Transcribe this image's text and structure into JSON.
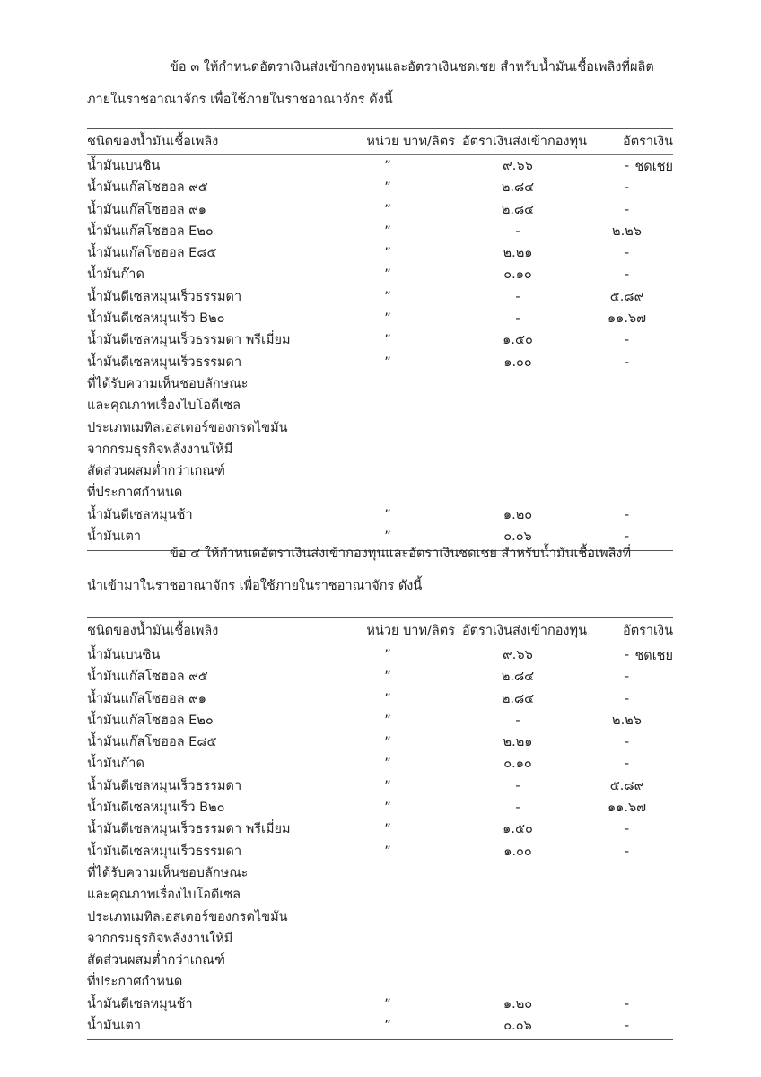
{
  "sections": [
    {
      "paragraph_line1": "ข้อ ๓ ให้กำหนดอัตราเงินส่งเข้ากองทุนและอัตราเงินชดเชย สำหรับน้ำมันเชื้อเพลิงที่ผลิต",
      "paragraph_line2": "ภายในราชอาณาจักร เพื่อใช้ภายในราชอาณาจักร ดังนี้"
    },
    {
      "paragraph_line1": "ข้อ ๔ ให้กำหนดอัตราเงินส่งเข้ากองทุนและอัตราเงินชดเชย สำหรับน้ำมันเชื้อเพลิงที่",
      "paragraph_line2": "นำเข้ามาในราชอาณาจักร เพื่อใช้ภายในราชอาณาจักร ดังนี้"
    }
  ],
  "table": {
    "headers": [
      "ชนิดของน้ำมันเชื้อเพลิง",
      "หน่วย บาท/ลิตร",
      "อัตราเงินส่งเข้ากองทุน",
      "อัตราเงินชดเชย"
    ],
    "rows": [
      {
        "name": "น้ำมันเบนซิน",
        "unit": "”",
        "fund": "๙.๖๖",
        "comp": "-"
      },
      {
        "name": "น้ำมันแก๊สโซฮอล ๙๕",
        "unit": "”",
        "fund": "๒.๘๔",
        "comp": "-"
      },
      {
        "name": "น้ำมันแก๊สโซฮอล ๙๑",
        "unit": "”",
        "fund": "๒.๘๔",
        "comp": "-"
      },
      {
        "name": "น้ำมันแก๊สโซฮอล E๒๐",
        "unit": "”",
        "fund": "-",
        "comp": "๒.๒๖"
      },
      {
        "name": "น้ำมันแก๊สโซฮอล E๘๕",
        "unit": "”",
        "fund": "๒.๒๑",
        "comp": "-"
      },
      {
        "name": "น้ำมันก๊าด",
        "unit": "”",
        "fund": "๐.๑๐",
        "comp": "-"
      },
      {
        "name": "น้ำมันดีเซลหมุนเร็วธรรมดา",
        "unit": "”",
        "fund": "-",
        "comp": "๕.๘๙"
      },
      {
        "name": "น้ำมันดีเซลหมุนเร็ว B๒๐",
        "unit": "”",
        "fund": "-",
        "comp": "๑๑.๖๗"
      },
      {
        "name": "น้ำมันดีเซลหมุนเร็วธรรมดา พรีเมี่ยม",
        "unit": "”",
        "fund": "๑.๕๐",
        "comp": "-"
      },
      {
        "name": "น้ำมันดีเซลหมุนเร็วธรรมดา",
        "unit": "”",
        "fund": "๑.๐๐",
        "comp": "-",
        "extra": [
          "ที่ได้รับความเห็นชอบลักษณะ",
          "และคุณภาพเรื่องไบโอดีเซล",
          "ประเภทเมทิลเอสเตอร์ของกรดไขมัน",
          "จากกรมธุรกิจพลังงานให้มี",
          "สัดส่วนผสมต่ำกว่าเกณฑ์",
          "ที่ประกาศกำหนด"
        ]
      },
      {
        "name": "น้ำมันดีเซลหมุนช้า",
        "unit": "”",
        "fund": "๑.๒๐",
        "comp": "-"
      },
      {
        "name": "น้ำมันเตา",
        "unit": "”",
        "fund": "๐.๐๖",
        "comp": "-"
      }
    ]
  }
}
